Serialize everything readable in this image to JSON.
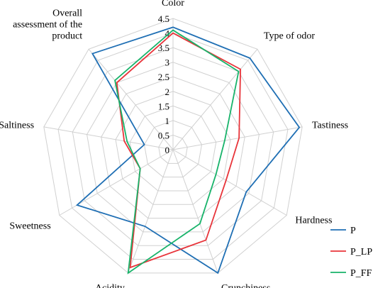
{
  "chart_data": {
    "type": "radar",
    "title": "",
    "axes": [
      "Color",
      "Type of odor",
      "Tastiness",
      "Hardness",
      "Crunchiness",
      "Acidity",
      "Sweetness",
      "Saltiness",
      "Overall assessment of the product"
    ],
    "axis_label_lines": [
      [
        "Color"
      ],
      [
        "Type of odor"
      ],
      [
        "Tastiness"
      ],
      [
        "Hardness"
      ],
      [
        "Crunchiness"
      ],
      [
        "Acidity"
      ],
      [
        "Sweetness"
      ],
      [
        "Saltiness"
      ],
      [
        "Overall",
        "assessment of the",
        "product"
      ]
    ],
    "rlim": [
      0,
      4.5
    ],
    "ticks": [
      "0",
      "0.5",
      "1",
      "1.5",
      "2",
      "2.5",
      "3",
      "3.5",
      "4",
      "4.5"
    ],
    "tick_values": [
      0,
      0.5,
      1,
      1.5,
      2,
      2.5,
      3,
      3.5,
      4,
      4.5
    ],
    "grid": true,
    "legend_position": "bottom-right",
    "series": [
      {
        "name": "P",
        "color": "#1f6fb4",
        "values": [
          4.2,
          4.1,
          4.4,
          2.9,
          4.5,
          2.8,
          3.8,
          1.0,
          4.3
        ]
      },
      {
        "name": "P_LP",
        "color": "#e8343a",
        "values": [
          4.0,
          3.6,
          2.3,
          2.1,
          3.3,
          4.3,
          1.3,
          1.7,
          3.0
        ]
      },
      {
        "name": "P_FF",
        "color": "#18b36a",
        "values": [
          4.1,
          3.5,
          1.8,
          1.7,
          2.7,
          4.5,
          1.3,
          1.6,
          3.1
        ]
      }
    ]
  }
}
